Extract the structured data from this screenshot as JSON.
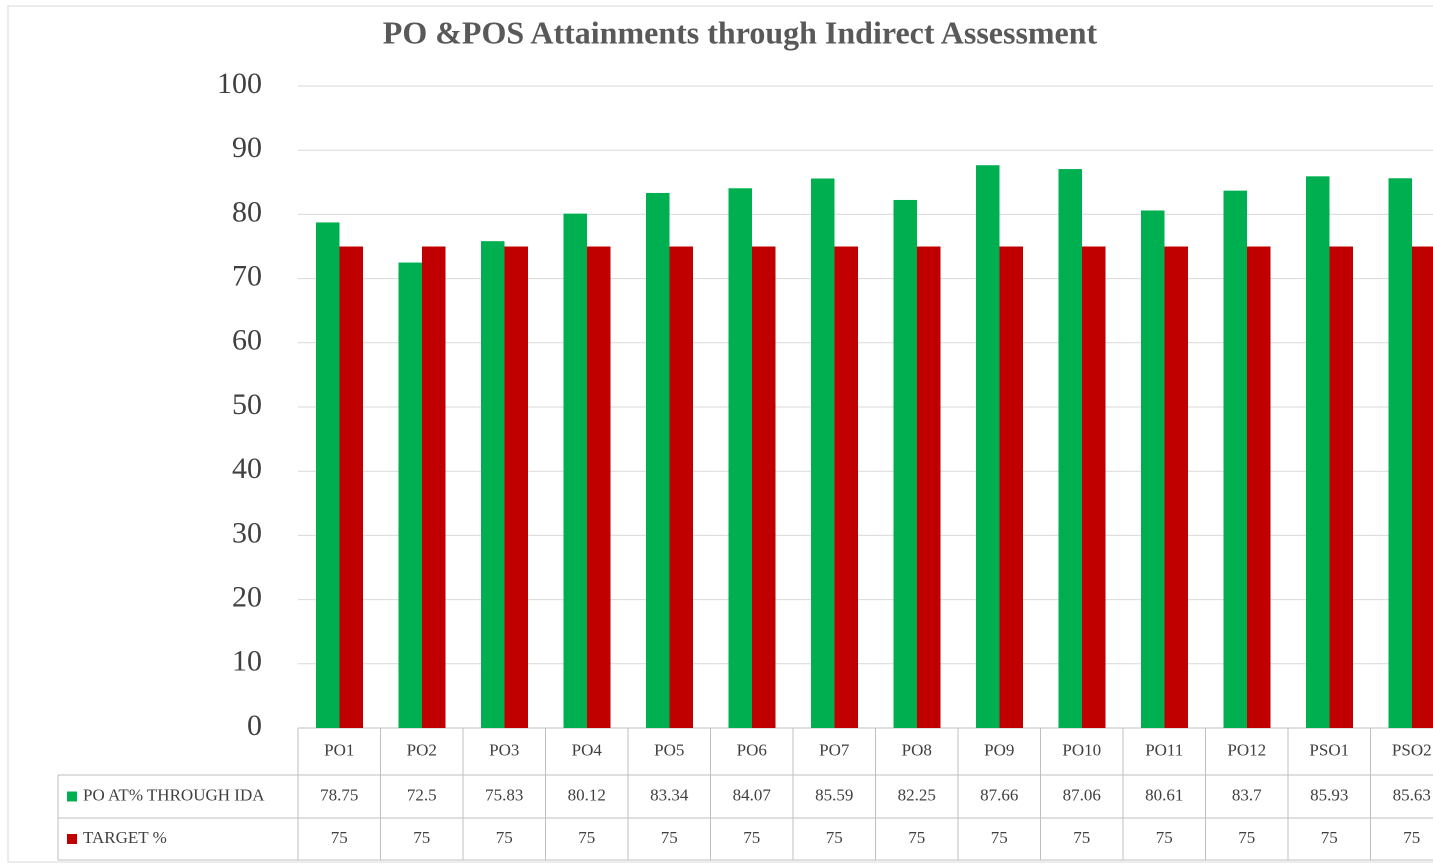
{
  "chart_data": {
    "type": "bar",
    "title": "PO &POS Attainments through Indirect Assessment",
    "categories": [
      "PO1",
      "PO2",
      "PO3",
      "PO4",
      "PO5",
      "PO6",
      "PO7",
      "PO8",
      "PO9",
      "PO10",
      "PO11",
      "PO12",
      "PSO1",
      "PSO2"
    ],
    "series": [
      {
        "name": "PO AT% THROUGH IDA",
        "color": "#00b050",
        "values": [
          78.75,
          72.5,
          75.83,
          80.12,
          83.34,
          84.07,
          85.59,
          82.25,
          87.66,
          87.06,
          80.61,
          83.7,
          85.93,
          85.63
        ]
      },
      {
        "name": "TARGET %",
        "color": "#c00000",
        "values": [
          75,
          75,
          75,
          75,
          75,
          75,
          75,
          75,
          75,
          75,
          75,
          75,
          75,
          75
        ]
      }
    ],
    "ylim": [
      0,
      100
    ],
    "yticks": [
      0,
      10,
      20,
      30,
      40,
      50,
      60,
      70,
      80,
      90,
      100
    ],
    "grid": true,
    "legend": "data-table"
  }
}
